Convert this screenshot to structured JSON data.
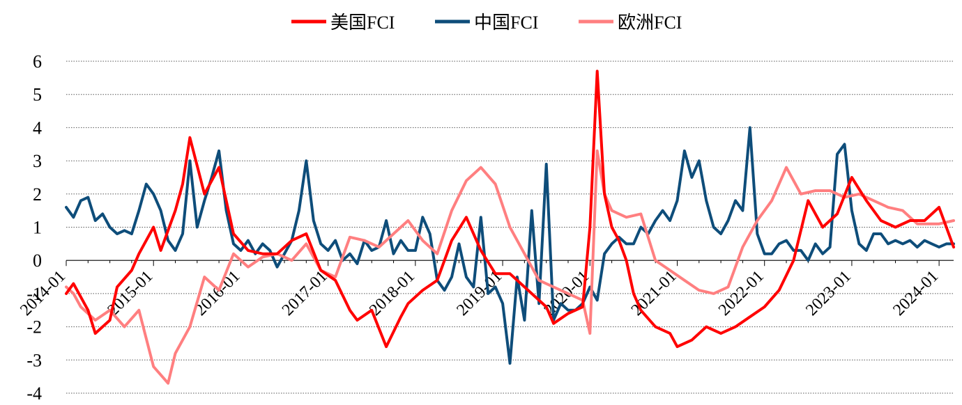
{
  "chart_data": {
    "type": "line",
    "title": "",
    "xlabel": "",
    "ylabel": "",
    "ylim": [
      -4,
      6
    ],
    "yticks": [
      -4,
      -3,
      -2,
      -1,
      0,
      1,
      2,
      3,
      4,
      5,
      6
    ],
    "xlim": [
      "2014-01",
      "2024-03"
    ],
    "xticks": [
      "2014-01",
      "2015-01",
      "2016-01",
      "2017-01",
      "2018-01",
      "2019-01",
      "2020-01",
      "2021-01",
      "2022-01",
      "2023-01",
      "2024-01"
    ],
    "legend_position": "top-center",
    "grid": "horizontal-dotted",
    "series": [
      {
        "name": "美国FCI",
        "color": "#ff0000",
        "x": [
          "2014-01",
          "2014-02",
          "2014-04",
          "2014-05",
          "2014-07",
          "2014-08",
          "2014-10",
          "2014-11",
          "2015-01",
          "2015-02",
          "2015-04",
          "2015-05",
          "2015-06",
          "2015-08",
          "2015-10",
          "2015-12",
          "2016-02",
          "2016-04",
          "2016-06",
          "2016-08",
          "2016-10",
          "2016-12",
          "2017-02",
          "2017-04",
          "2017-05",
          "2017-07",
          "2017-09",
          "2017-11",
          "2017-12",
          "2018-02",
          "2018-04",
          "2018-06",
          "2018-08",
          "2018-10",
          "2018-12",
          "2019-02",
          "2019-04",
          "2019-05",
          "2019-07",
          "2019-08",
          "2019-10",
          "2019-12",
          "2020-01",
          "2020-02",
          "2020-03",
          "2020-04",
          "2020-05",
          "2020-06",
          "2020-07",
          "2020-08",
          "2020-10",
          "2020-12",
          "2021-01",
          "2021-03",
          "2021-05",
          "2021-07",
          "2021-09",
          "2021-11",
          "2022-01",
          "2022-03",
          "2022-05",
          "2022-07",
          "2022-09",
          "2022-11",
          "2023-01",
          "2023-03",
          "2023-05",
          "2023-07",
          "2023-09",
          "2023-11",
          "2024-01",
          "2024-03"
        ],
        "values": [
          -1.0,
          -0.7,
          -1.5,
          -2.2,
          -1.8,
          -0.8,
          -0.3,
          0.2,
          1.0,
          0.3,
          1.5,
          2.3,
          3.7,
          2.0,
          2.8,
          0.8,
          0.3,
          0.2,
          0.2,
          0.6,
          0.8,
          -0.3,
          -0.6,
          -1.5,
          -1.8,
          -1.5,
          -2.6,
          -1.7,
          -1.3,
          -0.9,
          -0.6,
          0.6,
          1.3,
          0.3,
          -0.4,
          -0.4,
          -0.8,
          -1.0,
          -1.4,
          -1.9,
          -1.6,
          -1.4,
          1.0,
          5.7,
          2.0,
          1.0,
          0.6,
          0.0,
          -1.0,
          -1.5,
          -2.0,
          -2.2,
          -2.6,
          -2.4,
          -2.0,
          -2.2,
          -2.0,
          -1.7,
          -1.4,
          -0.9,
          0.0,
          1.8,
          1.0,
          1.4,
          2.5,
          1.8,
          1.2,
          1.0,
          1.2,
          1.2,
          1.6,
          0.4
        ]
      },
      {
        "name": "中国FCI",
        "color": "#0e4d7a",
        "x": [
          "2014-01",
          "2014-02",
          "2014-03",
          "2014-04",
          "2014-05",
          "2014-06",
          "2014-07",
          "2014-08",
          "2014-09",
          "2014-10",
          "2014-11",
          "2014-12",
          "2015-01",
          "2015-02",
          "2015-03",
          "2015-04",
          "2015-05",
          "2015-06",
          "2015-07",
          "2015-08",
          "2015-09",
          "2015-10",
          "2015-11",
          "2015-12",
          "2016-01",
          "2016-02",
          "2016-03",
          "2016-04",
          "2016-05",
          "2016-06",
          "2016-07",
          "2016-08",
          "2016-09",
          "2016-10",
          "2016-11",
          "2016-12",
          "2017-01",
          "2017-02",
          "2017-03",
          "2017-04",
          "2017-05",
          "2017-06",
          "2017-07",
          "2017-08",
          "2017-09",
          "2017-10",
          "2017-11",
          "2017-12",
          "2018-01",
          "2018-02",
          "2018-03",
          "2018-04",
          "2018-05",
          "2018-06",
          "2018-07",
          "2018-08",
          "2018-09",
          "2018-10",
          "2018-11",
          "2018-12",
          "2019-01",
          "2019-02",
          "2019-03",
          "2019-04",
          "2019-05",
          "2019-06",
          "2019-07",
          "2019-08",
          "2019-09",
          "2019-10",
          "2019-11",
          "2019-12",
          "2020-01",
          "2020-02",
          "2020-03",
          "2020-04",
          "2020-05",
          "2020-06",
          "2020-07",
          "2020-08",
          "2020-09",
          "2020-10",
          "2020-11",
          "2020-12",
          "2021-01",
          "2021-02",
          "2021-03",
          "2021-04",
          "2021-05",
          "2021-06",
          "2021-07",
          "2021-08",
          "2021-09",
          "2021-10",
          "2021-11",
          "2021-12",
          "2022-01",
          "2022-02",
          "2022-03",
          "2022-04",
          "2022-05",
          "2022-06",
          "2022-07",
          "2022-08",
          "2022-09",
          "2022-10",
          "2022-11",
          "2022-12",
          "2023-01",
          "2023-02",
          "2023-03",
          "2023-04",
          "2023-05",
          "2023-06",
          "2023-07",
          "2023-08",
          "2023-09",
          "2023-10",
          "2023-11",
          "2023-12",
          "2024-01",
          "2024-02",
          "2024-03"
        ],
        "values": [
          1.6,
          1.3,
          1.8,
          1.9,
          1.2,
          1.4,
          1.0,
          0.8,
          0.9,
          0.8,
          1.5,
          2.3,
          2.0,
          1.5,
          0.6,
          0.3,
          0.8,
          3.0,
          1.0,
          1.8,
          2.5,
          3.3,
          1.5,
          0.5,
          0.3,
          0.6,
          0.2,
          0.5,
          0.3,
          -0.2,
          0.2,
          0.6,
          1.5,
          3.0,
          1.2,
          0.5,
          0.3,
          0.6,
          0.0,
          0.2,
          -0.1,
          0.6,
          0.3,
          0.4,
          1.2,
          0.2,
          0.6,
          0.3,
          0.3,
          1.3,
          0.8,
          -0.6,
          -0.9,
          -0.5,
          0.5,
          -0.5,
          -0.8,
          1.3,
          -1.0,
          -0.8,
          -1.3,
          -3.1,
          -0.5,
          -1.8,
          1.5,
          -1.3,
          2.9,
          -1.8,
          -1.3,
          -1.5,
          -1.5,
          -1.3,
          -0.8,
          -1.2,
          0.2,
          0.5,
          0.7,
          0.5,
          0.5,
          1.0,
          0.8,
          1.2,
          1.5,
          1.2,
          1.8,
          3.3,
          2.5,
          3.0,
          1.8,
          1.0,
          0.8,
          1.2,
          1.8,
          1.5,
          4.0,
          0.8,
          0.2,
          0.2,
          0.5,
          0.6,
          0.3,
          0.3,
          0.0,
          0.5,
          0.2,
          0.4,
          3.2,
          3.5,
          1.5,
          0.5,
          0.3,
          0.8,
          0.8,
          0.5,
          0.6,
          0.5,
          0.6,
          0.4,
          0.6,
          0.5,
          0.4,
          0.5,
          0.5
        ]
      },
      {
        "name": "欧洲FCI",
        "color": "#ff7f80",
        "x": [
          "2014-01",
          "2014-02",
          "2014-03",
          "2014-05",
          "2014-07",
          "2014-09",
          "2014-11",
          "2015-01",
          "2015-03",
          "2015-04",
          "2015-06",
          "2015-08",
          "2015-10",
          "2015-12",
          "2016-02",
          "2016-04",
          "2016-06",
          "2016-08",
          "2016-10",
          "2016-12",
          "2017-02",
          "2017-04",
          "2017-06",
          "2017-08",
          "2017-10",
          "2017-12",
          "2018-02",
          "2018-04",
          "2018-06",
          "2018-08",
          "2018-10",
          "2018-12",
          "2019-02",
          "2019-04",
          "2019-06",
          "2019-08",
          "2019-10",
          "2019-12",
          "2020-01",
          "2020-02",
          "2020-03",
          "2020-04",
          "2020-06",
          "2020-08",
          "2020-10",
          "2020-12",
          "2021-02",
          "2021-04",
          "2021-06",
          "2021-08",
          "2021-10",
          "2021-12",
          "2022-02",
          "2022-04",
          "2022-06",
          "2022-08",
          "2022-10",
          "2022-12",
          "2023-02",
          "2023-04",
          "2023-06",
          "2023-08",
          "2023-10",
          "2023-12",
          "2024-01",
          "2024-03"
        ],
        "values": [
          -0.8,
          -1.0,
          -1.4,
          -1.8,
          -1.5,
          -2.0,
          -1.5,
          -3.2,
          -3.7,
          -2.8,
          -2.0,
          -0.5,
          -0.9,
          0.2,
          -0.2,
          0.1,
          0.2,
          0.0,
          0.5,
          -0.3,
          -0.5,
          0.7,
          0.6,
          0.4,
          0.8,
          1.2,
          0.6,
          0.2,
          1.5,
          2.4,
          2.8,
          2.3,
          1.0,
          0.2,
          -0.6,
          -0.8,
          -1.0,
          -1.2,
          -2.2,
          3.3,
          2.0,
          1.5,
          1.3,
          1.4,
          0.0,
          -0.3,
          -0.6,
          -0.9,
          -1.0,
          -0.8,
          0.4,
          1.2,
          1.8,
          2.8,
          2.0,
          2.1,
          2.1,
          1.9,
          2.0,
          1.8,
          1.6,
          1.5,
          1.1,
          1.1,
          1.1,
          1.2
        ]
      }
    ]
  }
}
